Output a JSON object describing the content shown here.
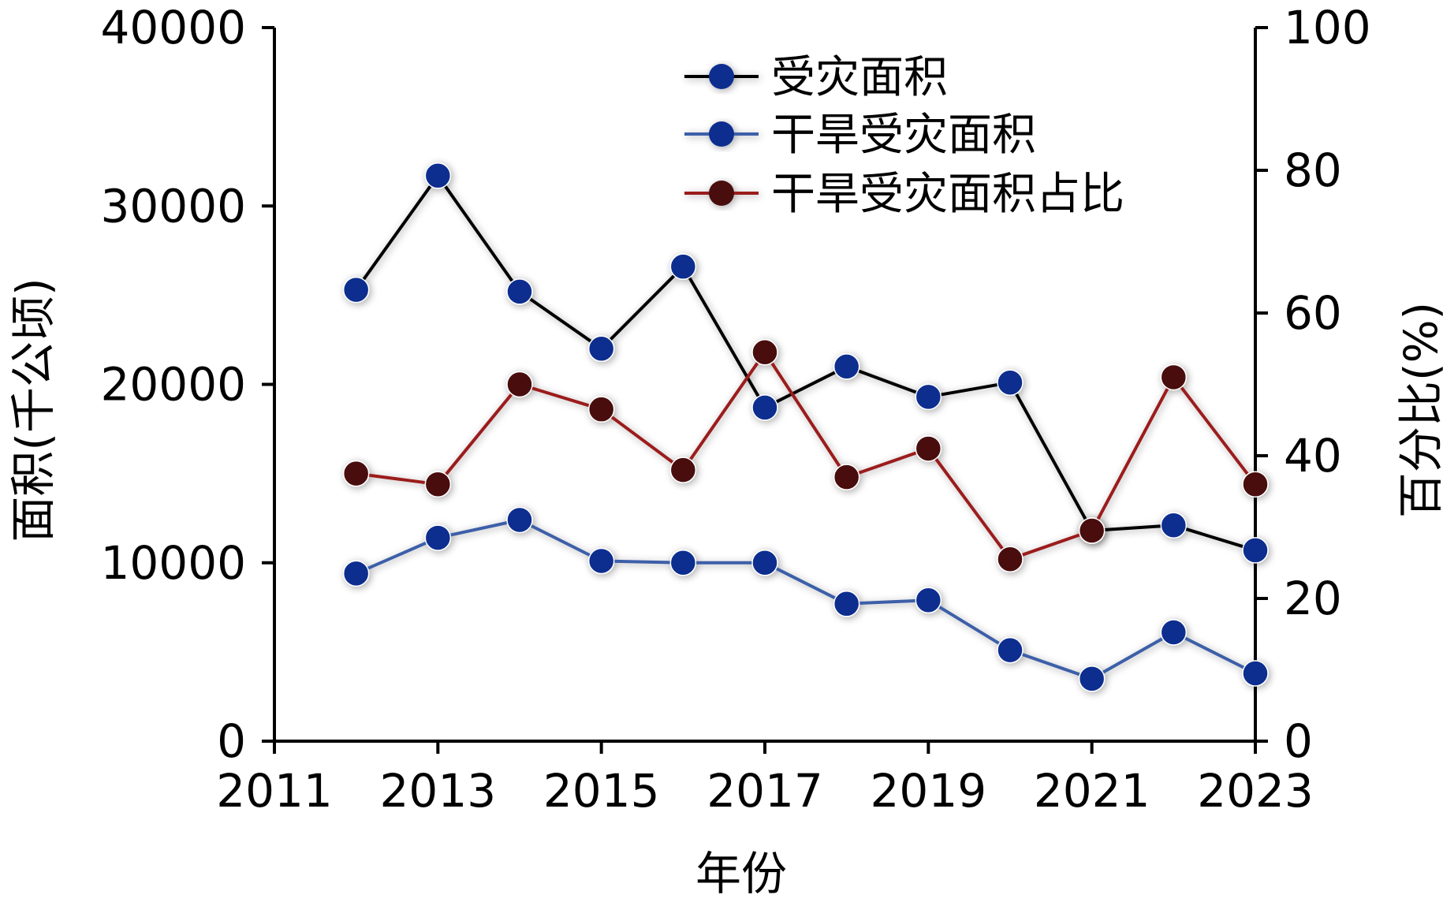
{
  "chart_data": {
    "type": "line",
    "title": "",
    "xlabel": "年份",
    "ylabel_left": "面积(千公顷)",
    "ylabel_right": "百分比(%)",
    "xlim": [
      2011,
      2023
    ],
    "ylim_left": [
      0,
      40000
    ],
    "ylim_right": [
      0,
      100
    ],
    "x_ticks": [
      2011,
      2013,
      2015,
      2017,
      2019,
      2021,
      2023
    ],
    "y_ticks_left": [
      0,
      10000,
      20000,
      30000,
      40000
    ],
    "y_ticks_right": [
      0,
      20,
      40,
      60,
      80,
      100
    ],
    "grid": false,
    "legend_position": "top-right",
    "x": [
      2012,
      2013,
      2014,
      2015,
      2016,
      2017,
      2018,
      2019,
      2020,
      2021,
      2022,
      2023
    ],
    "series": [
      {
        "name": "受灾面积",
        "axis": "left",
        "line_color": "#000000",
        "marker_color": "#0d2f8f",
        "values": [
          25300,
          31700,
          25200,
          22000,
          26600,
          18700,
          21000,
          19300,
          20100,
          11800,
          12100,
          10700
        ]
      },
      {
        "name": "干旱受灾面积",
        "axis": "left",
        "line_color": "#3d5fa8",
        "marker_color": "#0d2f8f",
        "values": [
          9400,
          11400,
          12400,
          10100,
          10000,
          10000,
          7700,
          7900,
          5100,
          3500,
          6100,
          3800
        ]
      },
      {
        "name": "干旱受灾面积占比",
        "axis": "right",
        "line_color": "#9b1c1c",
        "marker_color": "#4a0e0e",
        "values": [
          37.5,
          36,
          50,
          46.5,
          38,
          54.5,
          37,
          41,
          25.5,
          29.5,
          51,
          36
        ]
      }
    ]
  }
}
